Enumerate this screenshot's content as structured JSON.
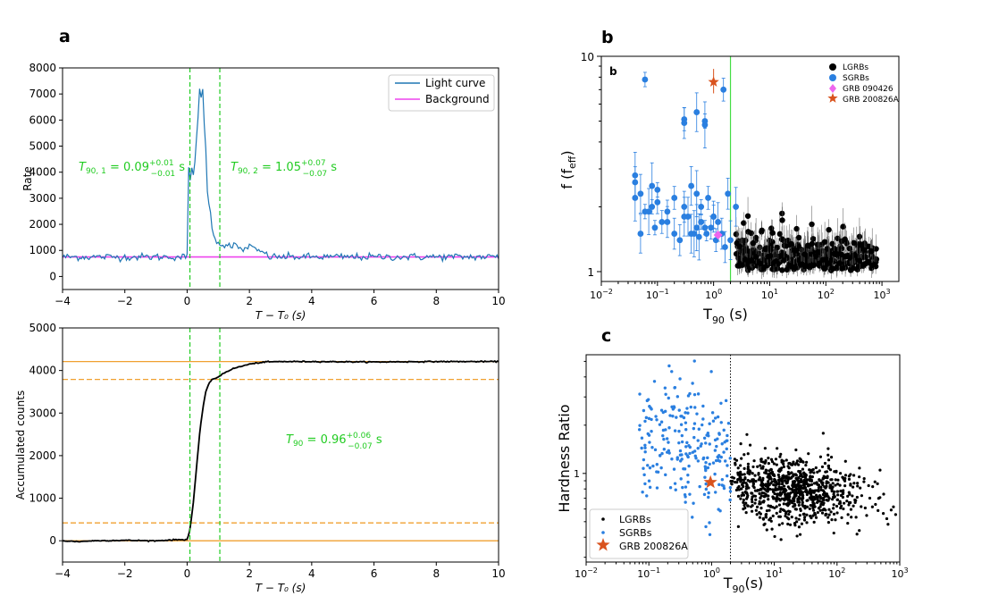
{
  "chart_data": [
    {
      "id": "a-top",
      "panel_letter": "a",
      "type": "line",
      "xlabel": "T − T₀ (s)",
      "ylabel": "Rate",
      "xlim": [
        -4,
        10
      ],
      "ylim": [
        -500,
        8000
      ],
      "xticks": [
        -4,
        -2,
        0,
        2,
        4,
        6,
        8,
        10
      ],
      "yticks": [
        0,
        1000,
        2000,
        3000,
        4000,
        5000,
        6000,
        7000,
        8000
      ],
      "xtick_labels": [
        "−4",
        "−2",
        "0",
        "2",
        "4",
        "6",
        "8",
        "10"
      ],
      "ytick_labels": [
        "0",
        "1000",
        "2000",
        "3000",
        "4000",
        "5000",
        "6000",
        "7000",
        "8000"
      ],
      "series": [
        {
          "name": "Light curve",
          "color": "#1f77b4"
        },
        {
          "name": "Background",
          "color": "#ee44ee",
          "value": 750
        }
      ],
      "light_curve_keypoints": {
        "x": [
          0.0,
          0.05,
          0.1,
          0.15,
          0.2,
          0.25,
          0.3,
          0.35,
          0.4,
          0.45,
          0.5,
          0.55,
          0.6,
          0.65,
          0.7,
          0.75,
          0.8,
          0.85,
          0.9,
          0.95,
          1.0,
          1.1,
          1.2,
          1.3,
          1.4,
          1.5,
          1.6,
          1.8,
          2.0,
          2.2,
          2.4,
          2.6
        ],
        "y": [
          900,
          4100,
          3700,
          4200,
          4000,
          4400,
          5200,
          6000,
          7200,
          6800,
          7200,
          5800,
          5000,
          3300,
          2800,
          2400,
          1800,
          1700,
          1500,
          1300,
          1350,
          1200,
          1150,
          1300,
          1100,
          1200,
          1150,
          1000,
          1200,
          1000,
          950,
          800
        ]
      },
      "vlines": [
        0.09,
        1.05
      ],
      "annotations": [
        {
          "text_main": "T",
          "sub": "90, 1",
          "value": " = 0.09",
          "sup": "+0.01",
          "sub2": "−0.01",
          "unit": " s"
        },
        {
          "text_main": "T",
          "sub": "90, 2",
          "value": " = 1.05",
          "sup": "+0.07",
          "sub2": "−0.07",
          "unit": " s"
        }
      ]
    },
    {
      "id": "a-bottom",
      "type": "line",
      "xlabel": "T − T₀ (s)",
      "ylabel": "Accumulated counts",
      "xlim": [
        -4,
        10
      ],
      "ylim": [
        -500,
        5000
      ],
      "xticks": [
        -4,
        -2,
        0,
        2,
        4,
        6,
        8,
        10
      ],
      "yticks": [
        0,
        1000,
        2000,
        3000,
        4000,
        5000
      ],
      "xtick_labels": [
        "−4",
        "−2",
        "0",
        "2",
        "4",
        "6",
        "8",
        "10"
      ],
      "ytick_labels": [
        "0",
        "1000",
        "2000",
        "3000",
        "4000",
        "5000"
      ],
      "curve_keypoints": {
        "x": [
          -4,
          -3.5,
          -3,
          -2,
          -1,
          -0.5,
          0.0,
          0.09,
          0.2,
          0.3,
          0.4,
          0.5,
          0.6,
          0.7,
          0.8,
          1.0,
          1.2,
          1.5,
          2.0,
          2.5,
          3,
          4,
          6,
          8,
          10
        ],
        "y": [
          0,
          -20,
          0,
          10,
          0,
          20,
          30,
          250,
          900,
          1700,
          2500,
          3100,
          3500,
          3700,
          3780,
          3850,
          3950,
          4050,
          4150,
          4200,
          4210,
          4210,
          4200,
          4210,
          4210
        ]
      },
      "hlines_solid": [
        0,
        4210
      ],
      "hlines_dashed": [
        420,
        3790
      ],
      "vlines": [
        0.09,
        1.05
      ],
      "annotation": {
        "text_main": "T",
        "sub": "90",
        "value": " = 0.96",
        "sup": "+0.06",
        "sub2": "−0.07",
        "unit": " s"
      }
    },
    {
      "id": "b",
      "panel_letter": "b",
      "inner_label": "b",
      "type": "scatter",
      "xlabel_main": "T",
      "xlabel_sub": "90",
      "xlabel_unit": " (s)",
      "ylabel_main": "f (f",
      "ylabel_sub": "eff",
      "ylabel_close": ")",
      "x_scale": "log",
      "y_scale": "log",
      "xlim": [
        0.01,
        2000
      ],
      "ylim": [
        0.9,
        10
      ],
      "xtick_mantissa": "10",
      "xtick_exps": [
        "−2",
        "−1",
        "0",
        "1",
        "2",
        "3"
      ],
      "ytick_labels": [
        "1",
        "10"
      ],
      "vline": 2.0,
      "legend": [
        {
          "name": "LGRBs",
          "color": "#000000",
          "marker": "circle"
        },
        {
          "name": "SGRBs",
          "color": "#2a7fe0",
          "marker": "circle"
        },
        {
          "name": "GRB 090426",
          "color": "#ee66ee",
          "marker": "diamond"
        },
        {
          "name": "GRB 200826A",
          "color": "#d9531e",
          "marker": "star"
        }
      ],
      "sgrb_points": {
        "x": [
          0.06,
          0.3,
          0.3,
          0.5,
          0.7,
          0.7,
          1.5,
          0.04,
          0.05,
          0.08,
          0.1,
          0.2,
          0.3,
          0.4,
          0.5,
          0.6,
          0.8,
          1.0,
          1.2,
          0.04,
          0.06,
          0.1,
          0.15,
          0.3,
          0.5,
          0.7,
          1.0,
          1.8,
          0.05,
          0.07,
          0.09,
          0.12,
          0.2,
          0.35,
          0.45,
          0.6,
          0.9,
          1.4,
          2.5,
          0.04,
          0.08,
          0.15,
          0.25,
          0.4,
          0.55,
          0.75,
          1.1,
          1.6,
          2.0
        ],
        "y": [
          7.8,
          5.1,
          4.9,
          5.5,
          4.8,
          5.0,
          7.0,
          2.6,
          2.3,
          2.5,
          2.4,
          2.2,
          2.0,
          2.5,
          2.3,
          2.0,
          2.2,
          1.8,
          1.7,
          2.2,
          1.9,
          2.1,
          1.7,
          1.8,
          1.6,
          1.6,
          1.8,
          2.3,
          1.5,
          1.9,
          1.6,
          1.7,
          1.5,
          1.8,
          1.5,
          1.7,
          1.6,
          1.5,
          2.0,
          2.8,
          2.0,
          1.9,
          1.4,
          1.5,
          1.45,
          1.5,
          1.4,
          1.3,
          1.4
        ]
      },
      "special_points": [
        {
          "name": "GRB 090426",
          "x": 1.2,
          "y": 1.48
        },
        {
          "name": "GRB 200826A",
          "x": 1.0,
          "y": 7.6
        }
      ]
    },
    {
      "id": "c",
      "panel_letter": "c",
      "type": "scatter",
      "xlabel_main": "T",
      "xlabel_sub": "90",
      "xlabel_unit": "(s)",
      "ylabel": "Hardness Ratio",
      "x_scale": "log",
      "y_scale": "log",
      "xlim": [
        0.01,
        1000
      ],
      "ylim": [
        0.28,
        5.5
      ],
      "xtick_mantissa": "10",
      "xtick_exps": [
        "−2",
        "−1",
        "0",
        "1",
        "2",
        "3"
      ],
      "ytick_labels": [
        "1"
      ],
      "vline": 2.0,
      "legend": [
        {
          "name": "LGRBs",
          "color": "#000000",
          "marker": "dot"
        },
        {
          "name": "SGRBs",
          "color": "#2a7fe0",
          "marker": "dot"
        },
        {
          "name": "GRB 200826A",
          "color": "#d9531e",
          "marker": "star"
        }
      ],
      "special_point": {
        "name": "GRB 200826A",
        "x": 0.96,
        "y": 0.88
      }
    }
  ]
}
